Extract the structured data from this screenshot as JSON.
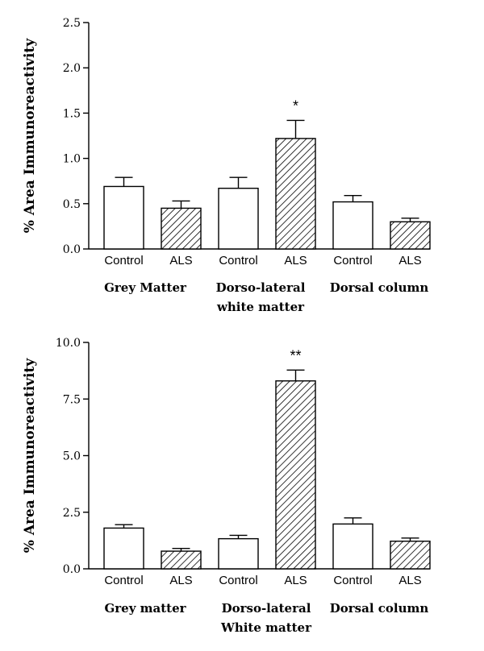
{
  "chart_data": [
    {
      "type": "bar",
      "ylabel": "% Area Immunoreactivity",
      "ylim": [
        0,
        2.5
      ],
      "yticks": [
        "0.0",
        "0.5",
        "1.0",
        "1.5",
        "2.0",
        "2.5"
      ],
      "categories": [
        "Control",
        "ALS",
        "Control",
        "ALS",
        "Control",
        "ALS"
      ],
      "values": [
        0.69,
        0.45,
        0.67,
        1.22,
        0.52,
        0.3
      ],
      "errors": [
        0.1,
        0.08,
        0.12,
        0.2,
        0.07,
        0.04
      ],
      "hatched": [
        false,
        true,
        false,
        true,
        false,
        true
      ],
      "annotations": [
        "",
        "",
        "",
        "*",
        "",
        ""
      ],
      "groups": [
        {
          "label_lines": [
            "Grey Matter"
          ]
        },
        {
          "label_lines": [
            "Dorso-lateral",
            "white matter"
          ]
        },
        {
          "label_lines": [
            "Dorsal column"
          ]
        }
      ]
    },
    {
      "type": "bar",
      "ylabel": "% Area Immunoreactivity",
      "ylim": [
        0,
        10
      ],
      "yticks": [
        "0.0",
        "2.5",
        "5.0",
        "7.5",
        "10.0"
      ],
      "categories": [
        "Control",
        "ALS",
        "Control",
        "ALS",
        "Control",
        "ALS"
      ],
      "values": [
        1.8,
        0.78,
        1.33,
        8.3,
        1.98,
        1.22
      ],
      "errors": [
        0.15,
        0.12,
        0.15,
        0.48,
        0.27,
        0.14
      ],
      "hatched": [
        false,
        true,
        false,
        true,
        false,
        true
      ],
      "annotations": [
        "",
        "",
        "",
        "**",
        "",
        ""
      ],
      "groups": [
        {
          "label_lines": [
            "Grey matter"
          ]
        },
        {
          "label_lines": [
            "Dorso-lateral",
            "White matter"
          ]
        },
        {
          "label_lines": [
            "Dorsal column"
          ]
        }
      ]
    }
  ]
}
